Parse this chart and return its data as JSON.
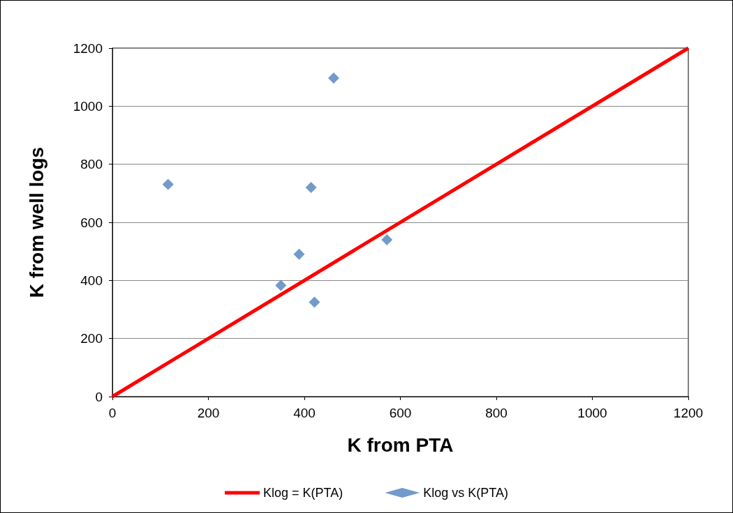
{
  "chart_data": {
    "type": "scatter",
    "xlabel": "K from PTA",
    "ylabel": "K from well logs",
    "xlim": [
      0,
      1200
    ],
    "xticks": [
      0,
      200,
      400,
      600,
      800,
      1000,
      1200
    ],
    "ylim": [
      0,
      1200
    ],
    "yticks": [
      0,
      200,
      400,
      600,
      800,
      1000,
      1200
    ],
    "grid": "y",
    "legend": "bottom",
    "series": [
      {
        "name": "Klog = K(PTA)",
        "type": "line",
        "color": "#ff0000",
        "x": [
          0,
          1200
        ],
        "values": [
          0,
          1200
        ],
        "marker": "none",
        "line_style": "solid"
      },
      {
        "name": "Klog vs K(PTA)",
        "color": "#4f81bd",
        "marker": "diamond",
        "x": [
          116,
          461,
          414,
          389,
          351,
          421,
          572
        ],
        "values": [
          731,
          1097,
          720,
          490,
          383,
          325,
          540
        ]
      }
    ]
  }
}
